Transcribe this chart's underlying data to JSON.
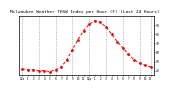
{
  "title": "Milwaukee Weather THSW Index per Hour (F) (Last 24 Hours)",
  "hours": [
    0,
    1,
    2,
    3,
    4,
    5,
    6,
    7,
    8,
    9,
    10,
    11,
    12,
    13,
    14,
    15,
    16,
    17,
    18,
    19,
    20,
    21,
    22,
    23
  ],
  "values": [
    42,
    41,
    41,
    40,
    40,
    39,
    41,
    44,
    52,
    63,
    74,
    84,
    91,
    95,
    93,
    88,
    80,
    72,
    65,
    58,
    52,
    48,
    46,
    44
  ],
  "line_color": "#ff0000",
  "marker_color": "#ff0000",
  "bg_color": "#ffffff",
  "grid_color": "#888888",
  "title_color": "#000000",
  "title_fontsize": 3.2,
  "ylim": [
    35,
    100
  ],
  "yticks": [
    40,
    50,
    60,
    70,
    80,
    90
  ],
  "ytick_labels": [
    "40",
    "50",
    "60",
    "70",
    "80",
    "90"
  ],
  "grid_hours": [
    0,
    3,
    6,
    9,
    12,
    15,
    18,
    21,
    23
  ],
  "xtick_positions": [
    0,
    1,
    2,
    3,
    4,
    5,
    6,
    7,
    8,
    9,
    10,
    11,
    12,
    13,
    14,
    15,
    16,
    17,
    18,
    19,
    20,
    21,
    22,
    23
  ],
  "xtick_labels": [
    "12a",
    "1",
    "2",
    "3",
    "4",
    "5",
    "6",
    "7",
    "8",
    "9",
    "10",
    "11",
    "12p",
    "1",
    "2",
    "3",
    "4",
    "5",
    "6",
    "7",
    "8",
    "9",
    "10",
    "11"
  ]
}
